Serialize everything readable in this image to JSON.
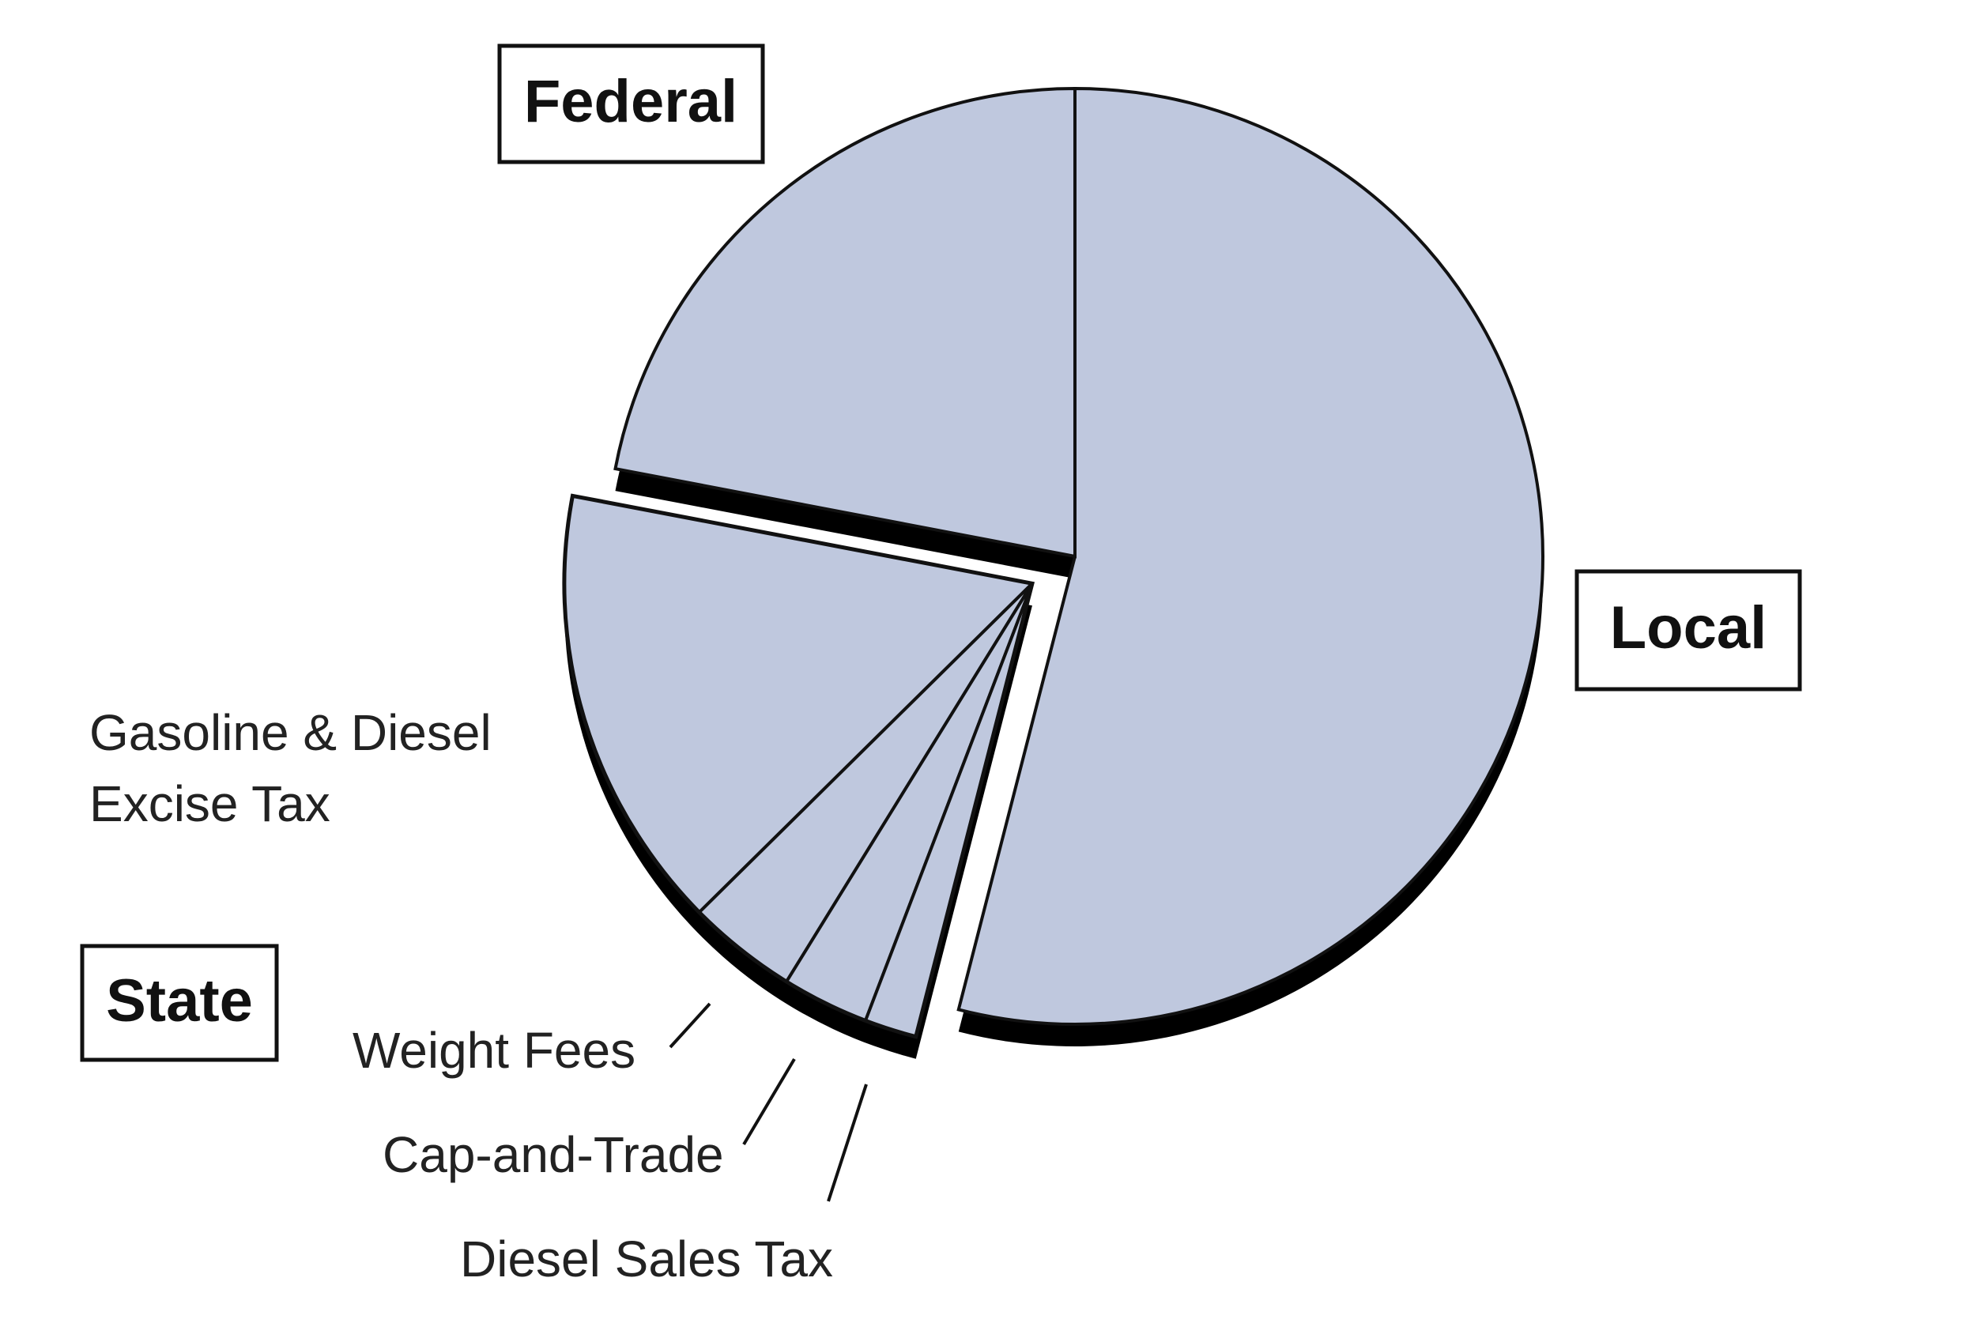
{
  "chart_data": {
    "type": "pie",
    "categories": [
      "Local",
      "State",
      "Federal"
    ],
    "values": [
      54,
      24,
      22
    ],
    "color": "#bfc8de",
    "exploded": "State",
    "state_breakdown": {
      "categories": [
        "Gasoline & Diesel Excise Tax",
        "Weight Fees",
        "Cap-and-Trade",
        "Diesel Sales Tax"
      ],
      "values": [
        15.4,
        3.8,
        3.0,
        1.8
      ]
    }
  }
}
